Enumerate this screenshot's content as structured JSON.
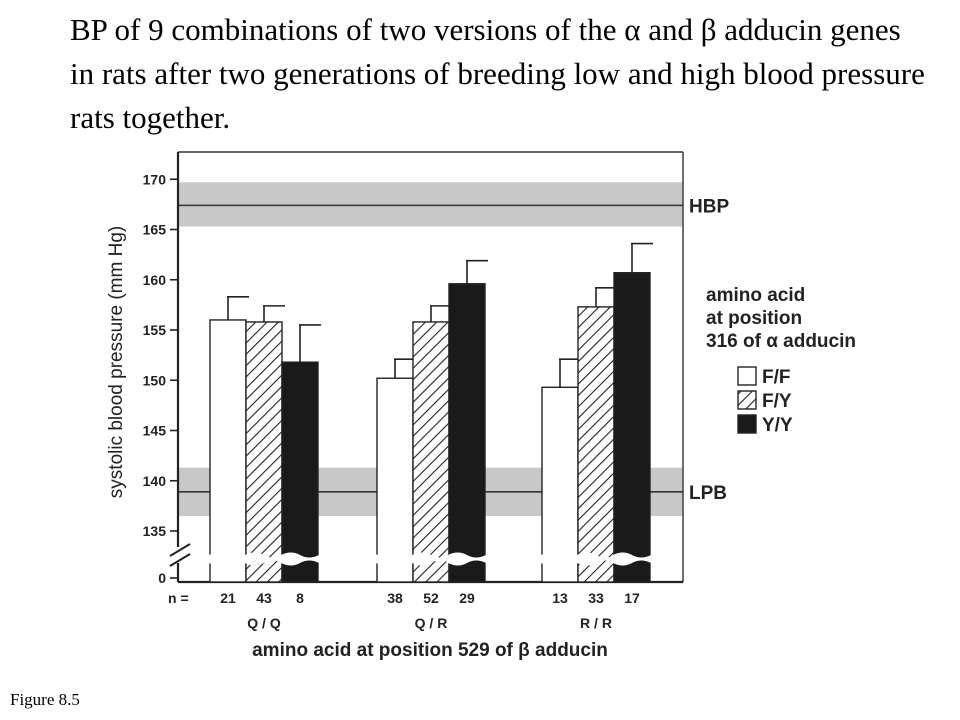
{
  "slide": {
    "title": "BP of 9 combinations of two versions of the α and β adducin genes in rats after two generations of breeding low and high blood pressure rats together.",
    "caption": "Figure 8.5"
  },
  "chart_data": {
    "type": "bar",
    "title": "",
    "ylabel": "systolic blood pressure (mm Hg)",
    "xlabel": "amino acid at position 529 of β adducin",
    "ylim": [
      135,
      172
    ],
    "yticks": [
      170,
      165,
      160,
      155,
      150,
      145,
      140,
      135
    ],
    "y_zero_tick": "0",
    "axis_break": true,
    "categories": [
      "Q / Q",
      "Q / R",
      "R / R"
    ],
    "legend": {
      "title_lines": [
        "amino acid",
        "at position",
        "316 of α adducin"
      ],
      "placement": "right"
    },
    "series": [
      {
        "name": "F/F",
        "fill": "white",
        "values": [
          156.0,
          150.2,
          149.3
        ],
        "errors": [
          2.3,
          1.9,
          2.8
        ],
        "n": [
          "21",
          "38",
          "13"
        ]
      },
      {
        "name": "F/Y",
        "fill": "hatched",
        "values": [
          155.8,
          155.8,
          157.3
        ],
        "errors": [
          1.6,
          1.6,
          1.9
        ],
        "n": [
          "43",
          "52",
          "33"
        ]
      },
      {
        "name": "Y/Y",
        "fill": "black",
        "values": [
          151.8,
          159.6,
          160.7
        ],
        "errors": [
          3.7,
          2.3,
          2.9
        ],
        "n": [
          "8",
          "29",
          "17"
        ]
      }
    ],
    "n_label": "n =",
    "reference_lines": [
      {
        "label": "HBP",
        "value": 167.4,
        "band": [
          165.3,
          169.7
        ]
      },
      {
        "label": "LPB",
        "value": 138.9,
        "band": [
          136.5,
          141.3
        ]
      }
    ],
    "colors": {
      "band": "#c8c8c8",
      "bar_dark": "#1a1a1a"
    }
  }
}
